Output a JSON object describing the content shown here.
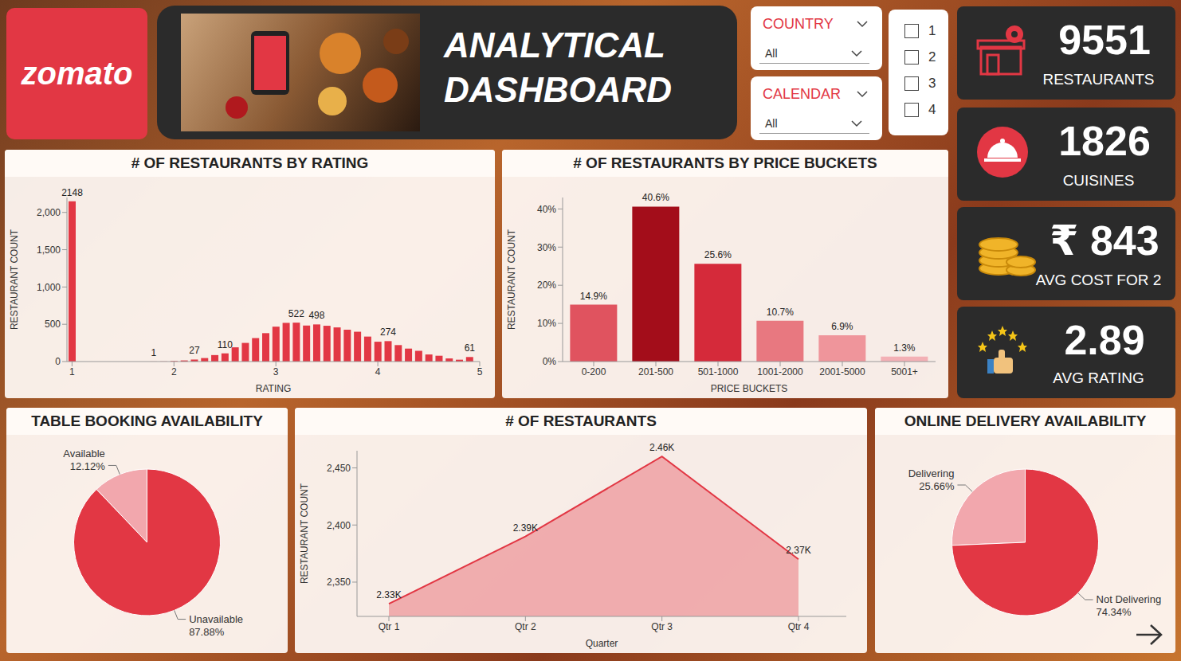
{
  "dashboard": {
    "logo": "zomato",
    "title": [
      "ANALYTICAL",
      "DASHBOARD"
    ],
    "filters": [
      {
        "label": "COUNTRY",
        "value": "All"
      },
      {
        "label": "CALENDAR",
        "value": "All"
      }
    ],
    "checkboxes": [
      "1",
      "2",
      "3",
      "4"
    ],
    "kpis": [
      {
        "value": 9551,
        "label": "RESTAURANTS"
      },
      {
        "value": 1826,
        "label": "CUISINES"
      },
      {
        "value": 843,
        "value_label": "₹ 843",
        "label": "AVG COST FOR 2"
      },
      {
        "value": 2.89,
        "label": "AVG RATING"
      }
    ]
  },
  "chart_data": [
    {
      "type": "bar",
      "title": "# OF RESTAURANTS BY RATING",
      "x_label": "RATING",
      "y_label": "RESTAURANT COUNT",
      "x": [
        1,
        1.8,
        1.9,
        2,
        2.1,
        2.2,
        2.3,
        2.4,
        2.5,
        2.6,
        2.7,
        2.8,
        2.9,
        3,
        3.1,
        3.2,
        3.3,
        3.4,
        3.5,
        3.6,
        3.7,
        3.8,
        3.9,
        4,
        4.1,
        4.2,
        4.3,
        4.4,
        4.5,
        4.6,
        4.7,
        4.8,
        4.9
      ],
      "values": [
        2148,
        1,
        2,
        7,
        15,
        27,
        47,
        87,
        110,
        191,
        250,
        315,
        381,
        468,
        519,
        522,
        483,
        498,
        480,
        458,
        427,
        400,
        335,
        266,
        274,
        221,
        174,
        144,
        95,
        78,
        42,
        25,
        61
      ],
      "value_labels": [
        "2148",
        "1",
        null,
        null,
        null,
        "27",
        null,
        null,
        "110",
        null,
        null,
        null,
        null,
        null,
        null,
        "522",
        null,
        "498",
        null,
        null,
        null,
        null,
        null,
        null,
        "274",
        null,
        null,
        null,
        null,
        null,
        null,
        null,
        "61"
      ],
      "data_labels": true,
      "color": "#e23744",
      "xlim": [
        0.95,
        5
      ],
      "xticks": [
        1,
        2,
        3,
        4,
        5
      ],
      "ylim": [
        0,
        2200
      ],
      "yticks": [
        0,
        500,
        {
          "value": 1000,
          "label": "1,000"
        },
        {
          "value": 1500,
          "label": "1,500"
        },
        {
          "value": 2000,
          "label": "2,000"
        }
      ]
    },
    {
      "type": "bar",
      "title": "# OF RESTAURANTS BY PRICE BUCKETS",
      "x_label": "PRICE BUCKETS",
      "y_label": "RESTAURANT COUNT",
      "categories": [
        "0-200",
        "201-500",
        "501-1000",
        "1001-2000",
        "2001-5000",
        "5001+"
      ],
      "values": [
        14.9,
        40.6,
        25.6,
        10.7,
        6.9,
        1.3
      ],
      "value_labels": [
        "14.9%",
        "40.6%",
        "25.6%",
        "10.7%",
        "6.9%",
        "1.3%"
      ],
      "data_labels": true,
      "colors": [
        "#e0535f",
        "#a30d1a",
        "#d52a3a",
        "#e87880",
        "#ef959b",
        "#f3b0b5"
      ],
      "ylim": [
        0,
        43
      ],
      "yticks": [
        {
          "value": 0,
          "label": "0%"
        },
        {
          "value": 10,
          "label": "10%"
        },
        {
          "value": 20,
          "label": "20%"
        },
        {
          "value": 30,
          "label": "30%"
        },
        {
          "value": 40,
          "label": "40%"
        }
      ]
    },
    {
      "type": "pie",
      "title": "TABLE BOOKING AVAILABILITY",
      "categories": [
        "Available",
        "Unavailable"
      ],
      "values": [
        12.12,
        87.88
      ],
      "value_labels": [
        "12.12%",
        "87.88%"
      ],
      "data_labels": true,
      "colors": [
        "#f2a7ad",
        "#e23744"
      ]
    },
    {
      "type": "area",
      "title": "# OF RESTAURANTS",
      "x_label": "Quarter",
      "y_label": "RESTAURANT COUNT",
      "categories": [
        "Qtr 1",
        "Qtr 2",
        "Qtr 3",
        "Qtr 4"
      ],
      "values": [
        2331,
        2390,
        2460,
        2370
      ],
      "value_labels": [
        "2.33K",
        "2.39K",
        "2.46K",
        "2.37K"
      ],
      "data_labels": true,
      "color": "#e23744",
      "ylim": [
        2320,
        2465
      ],
      "yticks": [
        {
          "value": 2350,
          "label": "2,350"
        },
        {
          "value": 2400,
          "label": "2,400"
        },
        {
          "value": 2450,
          "label": "2,450"
        }
      ]
    },
    {
      "type": "pie",
      "title": "ONLINE DELIVERY AVAILABILITY",
      "categories": [
        "Delivering",
        "Not Delivering"
      ],
      "values": [
        25.66,
        74.34
      ],
      "value_labels": [
        "25.66%",
        "74.34%"
      ],
      "data_labels": true,
      "colors": [
        "#f2a7ad",
        "#e23744"
      ]
    }
  ]
}
